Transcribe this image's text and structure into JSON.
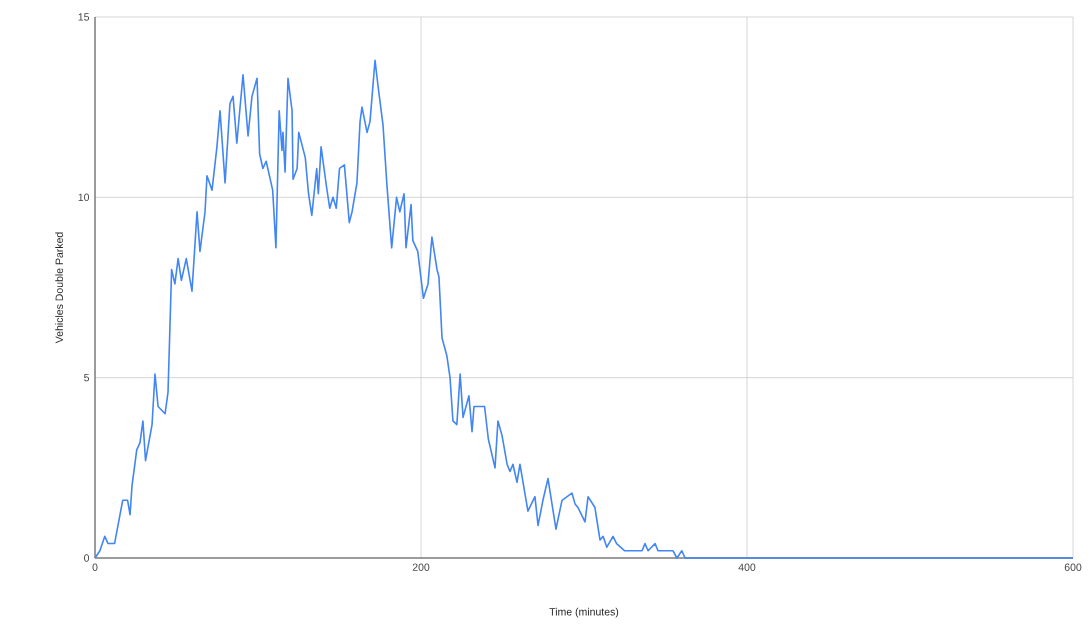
{
  "chart_data": {
    "type": "line",
    "xlabel": "Time (minutes)",
    "ylabel": "Vehicles Double Parked",
    "color": "#4285f4",
    "grid": true,
    "xlim": [
      0,
      600
    ],
    "ylim": [
      0,
      15
    ],
    "xticks": [
      0,
      200,
      400,
      600
    ],
    "yticks": [
      0,
      5,
      10,
      15
    ],
    "x": [
      0,
      3,
      6,
      8,
      12,
      17,
      20,
      21.5,
      22.7,
      25.6,
      27.6,
      29.4,
      31,
      35,
      36.8,
      38.7,
      43,
      44.8,
      47,
      49,
      51,
      53,
      56,
      59.5,
      62.6,
      64.4,
      67.5,
      68.7,
      71.8,
      74.8,
      76.7,
      79.8,
      82.8,
      84.7,
      87,
      90.8,
      93.9,
      96.3,
      99.4,
      101,
      103,
      105,
      107,
      109,
      111,
      113,
      114.7,
      115.3,
      116.6,
      118.4,
      120.9,
      121.5,
      124,
      125,
      129,
      131,
      133,
      136,
      137,
      138.7,
      142,
      144,
      146,
      148,
      150,
      153,
      156,
      157.7,
      160.7,
      162.6,
      163.8,
      166.9,
      168.7,
      171.8,
      173.6,
      176.7,
      179,
      182,
      185,
      187,
      189.6,
      190.8,
      193.9,
      195,
      198,
      201.5,
      204.3,
      206.7,
      209.8,
      211,
      212.9,
      215.9,
      217.8,
      219.6,
      222,
      224,
      225.8,
      229.4,
      231.3,
      232.5,
      239,
      241.3,
      245.4,
      247.2,
      249.7,
      252.8,
      254.6,
      256.4,
      258.9,
      260.7,
      265.6,
      269.9,
      271.8,
      274.8,
      277.9,
      282.8,
      286.5,
      292.6,
      294.5,
      296.3,
      300.6,
      302.5,
      306.7,
      309.8,
      311.7,
      314,
      317.8,
      320,
      325,
      335.6,
      337.4,
      339.3,
      343.6,
      345.4,
      354.6,
      357,
      360,
      362,
      600
    ],
    "values": [
      0,
      0.2,
      0.6,
      0.4,
      0.4,
      1.6,
      1.6,
      1.2,
      2.0,
      3.0,
      3.2,
      3.8,
      2.7,
      3.7,
      5.1,
      4.2,
      4.0,
      4.6,
      8.0,
      7.6,
      8.3,
      7.7,
      8.3,
      7.4,
      9.6,
      8.5,
      9.6,
      10.6,
      10.2,
      11.4,
      12.4,
      10.4,
      12.6,
      12.8,
      11.5,
      13.4,
      11.7,
      12.8,
      13.3,
      11.2,
      10.8,
      11.0,
      10.6,
      10.2,
      8.6,
      12.4,
      11.3,
      11.8,
      10.7,
      13.3,
      12.4,
      10.5,
      10.8,
      11.8,
      11.1,
      10.1,
      9.5,
      10.8,
      10.1,
      11.4,
      10.3,
      9.7,
      10.0,
      9.7,
      10.8,
      10.9,
      9.3,
      9.6,
      10.4,
      12.1,
      12.5,
      11.8,
      12.1,
      13.8,
      13.1,
      12.0,
      10.4,
      8.6,
      10.0,
      9.6,
      10.1,
      8.6,
      9.8,
      8.8,
      8.5,
      7.2,
      7.6,
      8.9,
      8.0,
      7.8,
      6.1,
      5.6,
      5.0,
      3.8,
      3.7,
      5.1,
      3.9,
      4.5,
      3.5,
      4.2,
      4.2,
      3.3,
      2.5,
      3.8,
      3.4,
      2.6,
      2.4,
      2.6,
      2.1,
      2.6,
      1.3,
      1.7,
      0.9,
      1.6,
      2.2,
      0.8,
      1.6,
      1.8,
      1.5,
      1.4,
      1.0,
      1.7,
      1.4,
      0.5,
      0.6,
      0.3,
      0.6,
      0.4,
      0.2,
      0.2,
      0.4,
      0.2,
      0.4,
      0.2,
      0.2,
      0,
      0.2,
      0,
      0
    ]
  }
}
